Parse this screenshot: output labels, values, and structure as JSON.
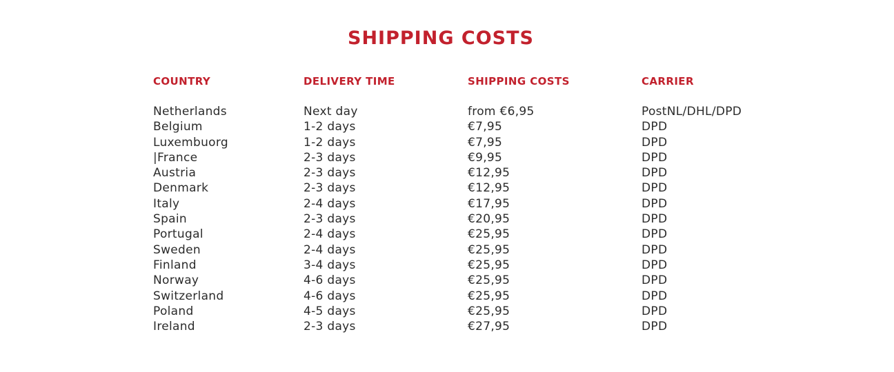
{
  "title": "SHIPPING COSTS",
  "table": {
    "headers": [
      "COUNTRY",
      "DELIVERY TIME",
      "SHIPPING COSTS",
      "CARRIER"
    ],
    "rows": [
      {
        "country": "Netherlands",
        "delivery_time": "Next day",
        "shipping_cost": "from €6,95",
        "carrier": "PostNL/DHL/DPD"
      },
      {
        "country": "Belgium",
        "delivery_time": "1-2 days",
        "shipping_cost": "€7,95",
        "carrier": "DPD"
      },
      {
        "country": "Luxembuorg",
        "delivery_time": "1-2 days",
        "shipping_cost": "€7,95",
        "carrier": "DPD"
      },
      {
        "country": "|France",
        "delivery_time": "2-3 days",
        "shipping_cost": "€9,95",
        "carrier": "DPD"
      },
      {
        "country": "Austria",
        "delivery_time": "2-3 days",
        "shipping_cost": "€12,95",
        "carrier": "DPD"
      },
      {
        "country": "Denmark",
        "delivery_time": "2-3 days",
        "shipping_cost": "€12,95",
        "carrier": "DPD"
      },
      {
        "country": "Italy",
        "delivery_time": "2-4 days",
        "shipping_cost": "€17,95",
        "carrier": "DPD"
      },
      {
        "country": "Spain",
        "delivery_time": "2-3 days",
        "shipping_cost": "€20,95",
        "carrier": "DPD"
      },
      {
        "country": "Portugal",
        "delivery_time": "2-4 days",
        "shipping_cost": "€25,95",
        "carrier": "DPD"
      },
      {
        "country": "Sweden",
        "delivery_time": "2-4 days",
        "shipping_cost": "€25,95",
        "carrier": "DPD"
      },
      {
        "country": "Finland",
        "delivery_time": "3-4 days",
        "shipping_cost": "€25,95",
        "carrier": "DPD"
      },
      {
        "country": "Norway",
        "delivery_time": "4-6 days",
        "shipping_cost": "€25,95",
        "carrier": "DPD"
      },
      {
        "country": "Switzerland",
        "delivery_time": "4-6 days",
        "shipping_cost": "€25,95",
        "carrier": "DPD"
      },
      {
        "country": "Poland",
        "delivery_time": "4-5 days",
        "shipping_cost": "€25,95",
        "carrier": "DPD"
      },
      {
        "country": "Ireland",
        "delivery_time": "2-3 days",
        "shipping_cost": "€27,95",
        "carrier": "DPD"
      }
    ]
  },
  "colors": {
    "accent_red": "#c2212d",
    "text": "#2b2b2b",
    "background": "#ffffff"
  }
}
